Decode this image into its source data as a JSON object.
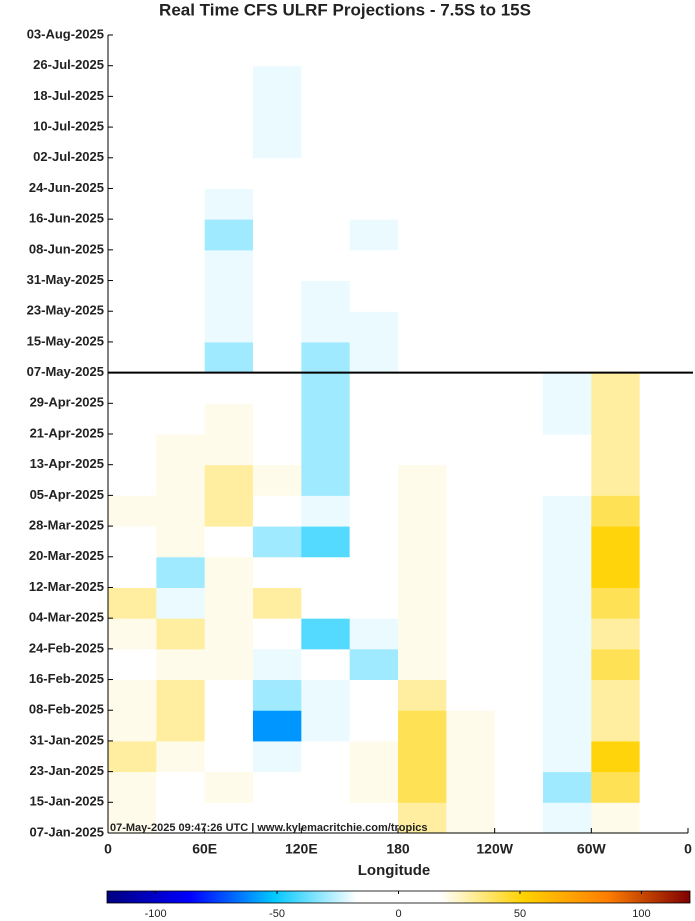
{
  "chart_data": {
    "type": "heatmap",
    "title": "Real Time CFS ULRF Projections - 7.5S to 15S",
    "xlabel": "Longitude",
    "annotation": "07-May-2025 09:47:26 UTC | www.kylemacritchie.com/tropics",
    "forecast_start": "2025-05-07",
    "xlim": [
      0,
      360
    ],
    "xticks": [
      0,
      {
        "value": 60,
        "label": "60E"
      },
      {
        "value": 120,
        "label": "120E"
      },
      180,
      {
        "value": 240,
        "label": "120W"
      },
      {
        "value": 300,
        "label": "60W"
      },
      {
        "value": 360,
        "label": "0"
      }
    ],
    "ylim": [
      "2025-01-07",
      "2025-08-03"
    ],
    "yticks": [
      {
        "value": "2025-01-07",
        "label": "07-Jan-2025"
      },
      {
        "value": "2025-01-15",
        "label": "15-Jan-2025"
      },
      {
        "value": "2025-01-23",
        "label": "23-Jan-2025"
      },
      {
        "value": "2025-01-31",
        "label": "31-Jan-2025"
      },
      {
        "value": "2025-02-08",
        "label": "08-Feb-2025"
      },
      {
        "value": "2025-02-16",
        "label": "16-Feb-2025"
      },
      {
        "value": "2025-02-24",
        "label": "24-Feb-2025"
      },
      {
        "value": "2025-03-04",
        "label": "04-Mar-2025"
      },
      {
        "value": "2025-03-12",
        "label": "12-Mar-2025"
      },
      {
        "value": "2025-03-20",
        "label": "20-Mar-2025"
      },
      {
        "value": "2025-03-28",
        "label": "28-Mar-2025"
      },
      {
        "value": "2025-04-05",
        "label": "05-Apr-2025"
      },
      {
        "value": "2025-04-13",
        "label": "13-Apr-2025"
      },
      {
        "value": "2025-04-21",
        "label": "21-Apr-2025"
      },
      {
        "value": "2025-04-29",
        "label": "29-Apr-2025"
      },
      {
        "value": "2025-05-07",
        "label": "07-May-2025"
      },
      {
        "value": "2025-05-15",
        "label": "15-May-2025"
      },
      {
        "value": "2025-05-23",
        "label": "23-May-2025"
      },
      {
        "value": "2025-05-31",
        "label": "31-May-2025"
      },
      {
        "value": "2025-06-08",
        "label": "08-Jun-2025"
      },
      {
        "value": "2025-06-16",
        "label": "16-Jun-2025"
      },
      {
        "value": "2025-06-24",
        "label": "24-Jun-2025"
      },
      {
        "value": "2025-07-02",
        "label": "02-Jul-2025"
      },
      {
        "value": "2025-07-10",
        "label": "10-Jul-2025"
      },
      {
        "value": "2025-07-18",
        "label": "18-Jul-2025"
      },
      {
        "value": "2025-07-26",
        "label": "26-Jul-2025"
      },
      {
        "value": "2025-08-03",
        "label": "03-Aug-2025"
      }
    ],
    "x_bins": [
      0,
      30,
      60,
      90,
      120,
      150,
      180,
      210,
      240,
      270,
      300,
      330,
      360
    ],
    "y_bins": [
      "2025-01-07",
      "2025-01-15",
      "2025-01-23",
      "2025-01-31",
      "2025-02-08",
      "2025-02-16",
      "2025-02-24",
      "2025-03-04",
      "2025-03-12",
      "2025-03-20",
      "2025-03-28",
      "2025-04-05",
      "2025-04-13",
      "2025-04-21",
      "2025-04-29",
      "2025-05-07",
      "2025-05-15",
      "2025-05-23",
      "2025-05-31",
      "2025-06-08",
      "2025-06-16",
      "2025-06-24",
      "2025-07-02",
      "2025-07-10",
      "2025-07-18",
      "2025-07-26",
      "2025-08-03"
    ],
    "z": [
      [
        20,
        -10,
        10,
        -10,
        10,
        -10,
        30,
        20,
        10,
        -20,
        20,
        10
      ],
      [
        20,
        10,
        20,
        -10,
        -10,
        20,
        40,
        20,
        10,
        -30,
        40,
        -10
      ],
      [
        30,
        20,
        10,
        -20,
        0,
        20,
        40,
        20,
        10,
        -20,
        50,
        -10
      ],
      [
        20,
        30,
        -10,
        -60,
        -20,
        10,
        40,
        20,
        10,
        -20,
        30,
        -10
      ],
      [
        20,
        30,
        10,
        -30,
        -20,
        0,
        30,
        10,
        10,
        -20,
        30,
        0
      ],
      [
        10,
        20,
        20,
        -20,
        10,
        -30,
        20,
        10,
        0,
        -20,
        40,
        10
      ],
      [
        20,
        30,
        20,
        10,
        -40,
        -20,
        20,
        10,
        0,
        -20,
        30,
        10
      ],
      [
        30,
        -20,
        20,
        30,
        10,
        10,
        20,
        10,
        0,
        -20,
        40,
        10
      ],
      [
        0,
        -30,
        20,
        10,
        10,
        10,
        20,
        10,
        0,
        -20,
        50,
        10
      ],
      [
        10,
        20,
        10,
        -30,
        -40,
        10,
        20,
        10,
        0,
        -20,
        50,
        10
      ],
      [
        20,
        20,
        30,
        10,
        -20,
        10,
        20,
        10,
        0,
        -20,
        40,
        0
      ],
      [
        10,
        20,
        30,
        20,
        -30,
        10,
        20,
        10,
        10,
        -10,
        30,
        0
      ],
      [
        10,
        20,
        20,
        10,
        -30,
        10,
        10,
        10,
        10,
        -10,
        30,
        0
      ],
      [
        10,
        10,
        20,
        10,
        -30,
        10,
        10,
        10,
        10,
        -20,
        30,
        0
      ],
      [
        10,
        -10,
        10,
        10,
        -30,
        10,
        0,
        10,
        10,
        -20,
        30,
        0
      ],
      [
        0,
        -10,
        -30,
        -10,
        -30,
        -20,
        -10,
        0,
        0,
        10,
        10,
        -10
      ],
      [
        0,
        0,
        -20,
        -10,
        -20,
        -20,
        0,
        0,
        0,
        0,
        -10,
        0
      ],
      [
        0,
        0,
        -20,
        -10,
        -20,
        -10,
        0,
        0,
        10,
        0,
        -10,
        0
      ],
      [
        0,
        0,
        -20,
        -10,
        -10,
        -10,
        0,
        0,
        0,
        0,
        -10,
        0
      ],
      [
        0,
        -10,
        -30,
        -10,
        -10,
        -20,
        0,
        0,
        10,
        0,
        -10,
        0
      ],
      [
        0,
        0,
        -20,
        -10,
        -10,
        -10,
        0,
        0,
        10,
        0,
        -10,
        0
      ],
      [
        0,
        0,
        -10,
        -10,
        0,
        -10,
        0,
        0,
        0,
        0,
        -10,
        0
      ],
      [
        0,
        0,
        -10,
        -20,
        0,
        -10,
        0,
        0,
        10,
        0,
        -10,
        0
      ],
      [
        0,
        0,
        -10,
        -20,
        0,
        -10,
        0,
        0,
        0,
        0,
        -10,
        0
      ],
      [
        0,
        0,
        -10,
        -20,
        0,
        -10,
        0,
        0,
        0,
        0,
        -10,
        0
      ],
      [
        0,
        10,
        -10,
        -10,
        0,
        0,
        0,
        10,
        0,
        0,
        -10,
        0
      ]
    ],
    "clim": [
      -120,
      120
    ],
    "cticks": [
      -100,
      -50,
      0,
      50,
      100
    ],
    "colormap": [
      "#00007f",
      "#0000ff",
      "#00c8ff",
      "#ffffff",
      "#ffffff",
      "#ffd200",
      "#ff7f00",
      "#7f0000"
    ]
  }
}
